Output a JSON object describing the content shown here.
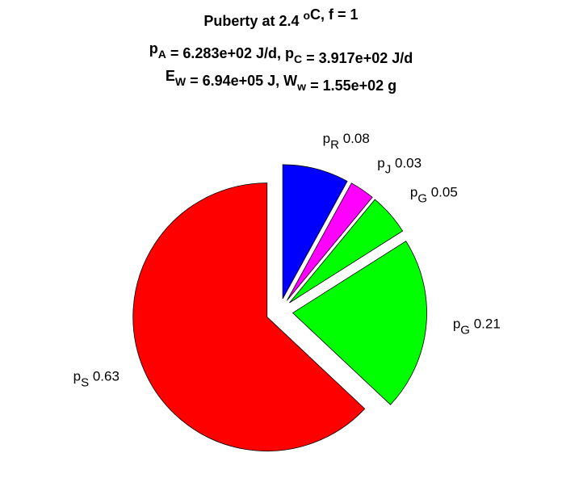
{
  "chart_data": {
    "type": "pie",
    "title": [
      [
        {
          "text": "Puberty at 2.4 "
        },
        {
          "text": "o",
          "script": "sup"
        },
        {
          "text": "C, f = 1"
        }
      ],
      [
        {
          "text": "p"
        },
        {
          "text": "A",
          "script": "sub"
        },
        {
          "text": " = 6.283e+02 J/d,  p"
        },
        {
          "text": "C",
          "script": "sub"
        },
        {
          "text": " = 3.917e+02 J/d"
        }
      ],
      [
        {
          "text": "E"
        },
        {
          "text": "W",
          "script": "sub"
        },
        {
          "text": " = 6.94e+05 J, W"
        },
        {
          "text": "w",
          "script": "sub"
        },
        {
          "text": " = 1.55e+02 g"
        }
      ]
    ],
    "categories": [
      {
        "text": "p",
        "sub": "R"
      },
      {
        "text": "p",
        "sub": "J"
      },
      {
        "text": "p",
        "sub": "G"
      },
      {
        "text": "p",
        "sub": "G"
      },
      {
        "text": "p",
        "sub": "S"
      }
    ],
    "values": [
      0.08,
      0.03,
      0.05,
      0.21,
      0.63
    ],
    "colors": [
      "#0000ff",
      "#ff00ff",
      "#00ff00",
      "#00ff00",
      "#ff0000"
    ],
    "explode": true
  }
}
